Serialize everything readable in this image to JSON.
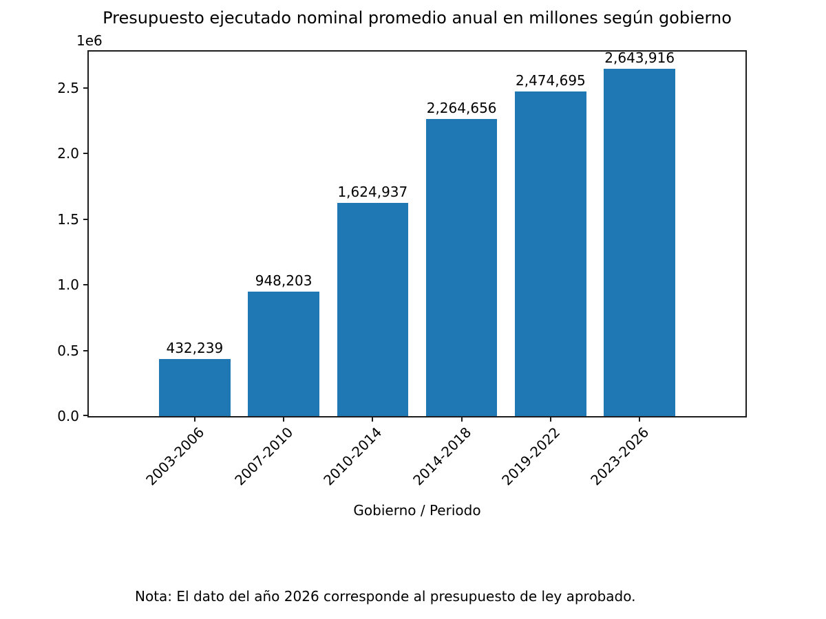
{
  "figure": {
    "note": "Nota: El dato del año 2026 corresponde al presupuesto de ley aprobado."
  },
  "chart_data": {
    "type": "bar",
    "title": "Presupuesto ejecutado nominal promedio anual en millones según gobierno",
    "xlabel": "Gobierno / Periodo",
    "ylabel": "",
    "y_offset_text": "1e6",
    "categories": [
      "2003-2006",
      "2007-2010",
      "2010-2014",
      "2014-2018",
      "2019-2022",
      "2023-2026"
    ],
    "values": [
      432239,
      948203,
      1624937,
      2264656,
      2474695,
      2643916
    ],
    "bar_labels": [
      "432,239",
      "948,203",
      "1,624,937",
      "2,264,656",
      "2,474,695",
      "2,643,916"
    ],
    "y_ticks": [
      "0.0",
      "0.5",
      "1.0",
      "1.5",
      "2.0",
      "2.5"
    ],
    "y_tick_values": [
      0,
      500000,
      1000000,
      1500000,
      2000000,
      2500000
    ],
    "ylim": [
      0,
      2776112
    ],
    "bar_color": "#1f77b4",
    "axis_color": "#1c1c1c",
    "text_color": "#000000",
    "grid": false,
    "legend": null,
    "annotation": "Nota: El dato del año 2026 corresponde al presupuesto de ley aprobado."
  }
}
